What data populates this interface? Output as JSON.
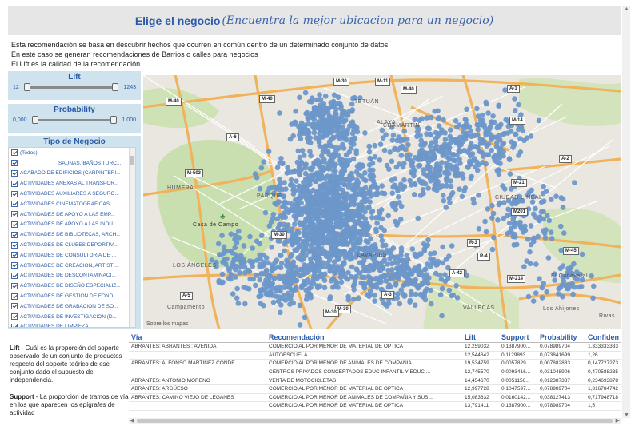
{
  "title": {
    "main": "Elige el negocio",
    "sub": "(Encuentra la mejor ubicacion para un negocio)"
  },
  "description": [
    "Esta recomendación se basa en descubrir hechos que ocurren en común dentro de un determinado conjunto de datos.",
    "En este caso se generan recomendaciones de  Barrios o  calles para negocios",
    "El Lift es la calidad de la recomendación."
  ],
  "lift_filter": {
    "label": "Lift",
    "min": "12",
    "max": "1243"
  },
  "probability_filter": {
    "label": "Probability",
    "min": "0,000",
    "max": "1,000"
  },
  "tipo_filter": {
    "label": "Tipo de Negocio",
    "items": [
      "(Todos)",
      "SAUNAS, BAÑOS TURC...",
      "ACABADO DE EDIFICIOS (CARPINTERI...",
      "ACTIVIDADES ANEXAS AL TRANSPOR...",
      "ACTIVIDADES AUXILIARES A SEGURO...",
      "ACTIVIDADES CINEMATOGRAFICAS, ...",
      "ACTIVIDADES DE APOYO A LAS EMP...",
      "ACTIVIDADES DE APOYO A LAS INDU...",
      "ACTIVIDADES DE BIBLIOTECAS, ARCH...",
      "ACTIVIDADES DE CLUBES DEPORTIV...",
      "ACTIVIDADES DE CONSULTORIA DE ...",
      "ACTIVIDADES DE CREACION, ARTISTI...",
      "ACTIVIDADES DE DESCONTAMINACI...",
      "ACTIVIDADES DE DISEÑO ESPECIALIZ...",
      "ACTIVIDADES DE GESTION DE FOND...",
      "ACTIVIDADES DE GRABACION DE SO...",
      "ACTIVIDADES DE INVESTIGACION (D...",
      "ACTIVIDADES DE LIMPIEZA"
    ]
  },
  "legend": {
    "lift_term": "Lift",
    "lift_text": " - Cuál es la proporción del soporte observado de un conjunto de productos respecto del soporte teórico de ese conjunto dado el supuesto de independencia.",
    "support_term": "Support",
    "support_text": " - La proporción de tramos de vía en los que aparecen los epígrafes de actividad"
  },
  "map": {
    "attribution": "Sobre los mapas",
    "roads": [
      "M-30",
      "M-11",
      "M-40",
      "M-40",
      "A-1",
      "M-40",
      "M-14",
      "A-2",
      "M-21",
      "M-503",
      "A-6",
      "M-30",
      "R-3",
      "M201",
      "M-45",
      "A-5",
      "M-30",
      "M-30",
      "A-3",
      "R-4",
      "A-42",
      "M-214"
    ],
    "places": [
      "HUMERA",
      "Casa de Campo",
      "LOS ÁNGELES",
      "Campamento",
      "El Cañaveral",
      "Los Ahijones",
      "Rivas",
      "CIUDAD LINEAL",
      "VALLECAS",
      "CHAMARTÍN",
      "PARQUE",
      "LAVAPIÉS",
      "TETUÁN",
      "ALAYA"
    ],
    "point_color": "#6d97c9"
  },
  "table": {
    "columns": [
      "Via",
      "Recomendación",
      "Lift",
      "Support",
      "Probability",
      "Confiden"
    ],
    "rows": [
      [
        "ABRANTES: ABRANTES : AVENIDA",
        "COMERCIO AL POR MENOR DE MATERIAL DE OPTICA",
        "12,259032",
        "0,1387900...",
        "0,078989704",
        "1,333333333"
      ],
      [
        "",
        "AUTOESCUELA",
        "12,544642",
        "0,1129893...",
        "0,073841699",
        "1,26"
      ],
      [
        "ABRANTES: ALFONSO MARTINEZ CONDE",
        "COMERCIO AL POR MENOR DE ANIMALES DE COMPAÑIA",
        "19,534759",
        "0,0057829...",
        "0,007882883",
        "0,147727273"
      ],
      [
        "",
        "CENTROS PRIVADOS CONCERTADOS EDUC INFANTIL Y EDUC ...",
        "12,745570",
        "0,0093416...",
        "0,031048906",
        "0,470588235"
      ],
      [
        "ABRANTES: ANTONIO MORENO",
        "VENTA DE MOTOCICLETAS",
        "14,454670",
        "0,0051156...",
        "0,012387387",
        "0,234693878"
      ],
      [
        "ABRANTES: ARGÜESO",
        "COMERCIO AL POR MENOR DE MATERIAL DE OPTICA",
        "12,997728",
        "0,1047597...",
        "0,078989704",
        "1,316784742"
      ],
      [
        "ABRANTES: CAMINO VIEJO DE LEGANES",
        "COMERCIO AL POR MENOR DE ANIMALES DE COMPAÑIA Y SUS...",
        "15,083632",
        "0,0160142...",
        "0,038127413",
        "0,717948718"
      ],
      [
        "",
        "COMERCIO AL POR MENOR DE MATERIAL DE OPTICA",
        "13,791411",
        "0,1387900...",
        "0,078989704",
        "1,5"
      ]
    ]
  }
}
